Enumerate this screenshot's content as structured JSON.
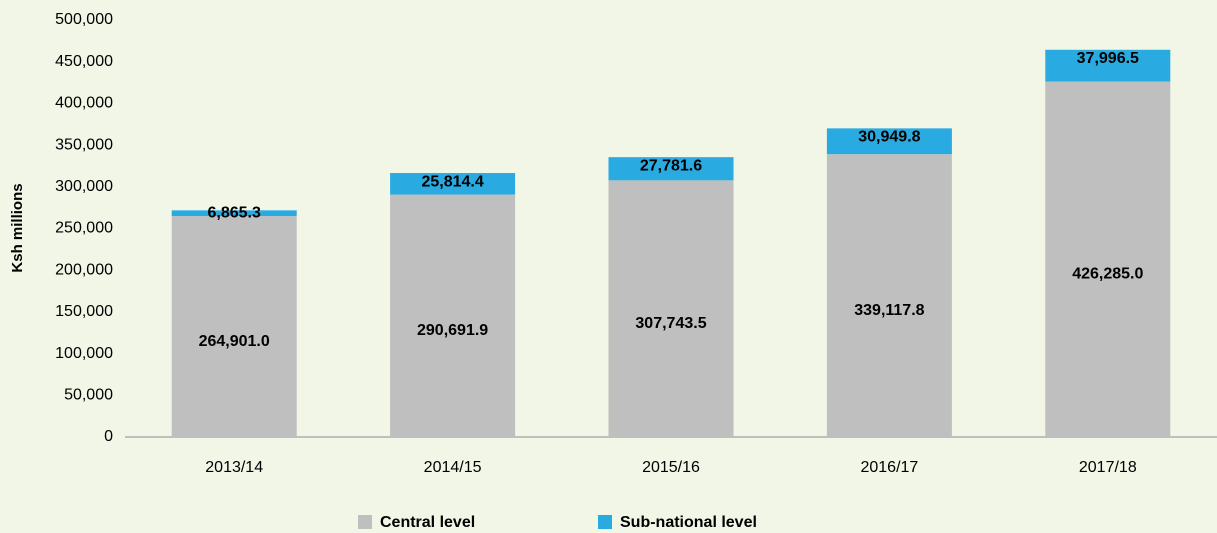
{
  "chart_data": {
    "type": "stacked_bar",
    "y_label": "Ksh millions",
    "categories": [
      "2013/14",
      "2014/15",
      "2015/16",
      "2016/17",
      "2017/18"
    ],
    "series": [
      {
        "name": "Central level",
        "color": "#bfbfbf",
        "values": [
          264901.0,
          290691.9,
          307743.5,
          339117.8,
          426285.0
        ],
        "value_labels": [
          "264,901.0",
          "290,691.9",
          "307,743.5",
          "339,117.8",
          "426,285.0"
        ]
      },
      {
        "name": "Sub-national level",
        "color": "#29abe2",
        "values": [
          6865.3,
          25814.4,
          27781.6,
          30949.8,
          37996.5
        ],
        "value_labels": [
          "6,865.3",
          "25,814.4",
          "27,781.6",
          "30,949.8",
          "37,996.5"
        ]
      }
    ],
    "ylim": [
      0,
      500000
    ],
    "yticks": [
      0,
      {
        "value": 50000,
        "label": "50,000"
      },
      {
        "value": 100000,
        "label": "100,000"
      },
      {
        "value": 150000,
        "label": "150,000"
      },
      {
        "value": 200000,
        "label": "200,000"
      },
      {
        "value": 250000,
        "label": "250,000"
      },
      {
        "value": 300000,
        "label": "300,000"
      },
      {
        "value": 350000,
        "label": "350,000"
      },
      {
        "value": 400000,
        "label": "400,000"
      },
      {
        "value": 450000,
        "label": "450,000"
      },
      {
        "value": 500000,
        "label": "500,000"
      }
    ],
    "grid": false
  }
}
